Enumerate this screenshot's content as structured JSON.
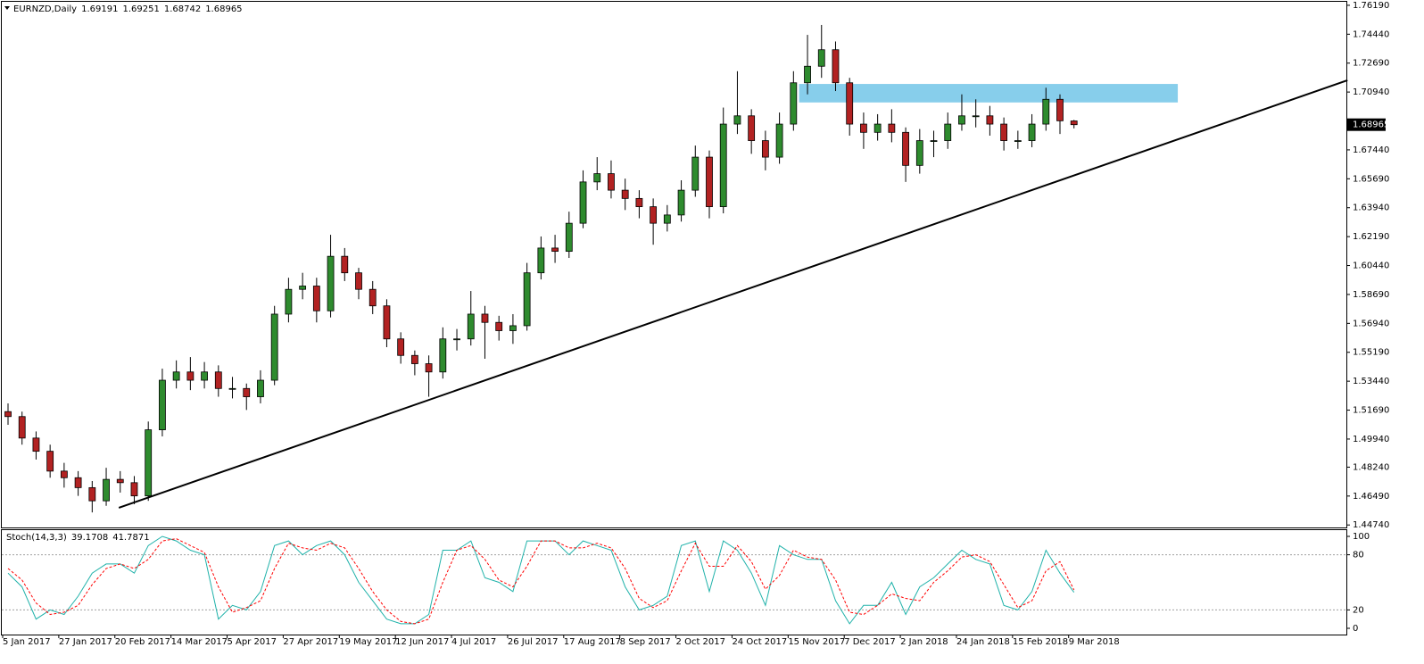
{
  "chart_data": [
    {
      "type": "candlestick",
      "title": "EURNZD,Daily",
      "categories": [
        "5 Jan 2017",
        null,
        null,
        null,
        "27 Jan 2017",
        null,
        null,
        null,
        "20 Feb 2017",
        null,
        null,
        null,
        "14 Mar 2017",
        null,
        null,
        null,
        "5 Apr 2017",
        null,
        null,
        null,
        "27 Apr 2017",
        null,
        null,
        null,
        "19 May 2017",
        null,
        null,
        null,
        "12 Jun 2017",
        null,
        null,
        null,
        "4 Jul 2017",
        null,
        null,
        null,
        "26 Jul 2017",
        null,
        null,
        null,
        "17 Aug 2017",
        null,
        null,
        null,
        "8 Sep 2017",
        null,
        null,
        null,
        "2 Oct 2017",
        null,
        null,
        null,
        "24 Oct 2017",
        null,
        null,
        null,
        "15 Nov 2017",
        null,
        null,
        null,
        "7 Dec 2017",
        null,
        null,
        null,
        "2 Jan 2018",
        null,
        null,
        null,
        "24 Jan 2018",
        null,
        null,
        null,
        "15 Feb 2018",
        null,
        null,
        null,
        "9 Mar 2018"
      ],
      "open": [
        1.516,
        1.513,
        1.5,
        1.492,
        1.48,
        1.476,
        1.47,
        1.462,
        1.475,
        1.473,
        1.465,
        1.505,
        1.535,
        1.54,
        1.535,
        1.54,
        1.53,
        1.53,
        1.525,
        1.535,
        1.575,
        1.59,
        1.592,
        1.577,
        1.61,
        1.6,
        1.59,
        1.58,
        1.56,
        1.55,
        1.545,
        1.54,
        1.56,
        1.56,
        1.575,
        1.57,
        1.565,
        1.568,
        1.6,
        1.615,
        1.613,
        1.63,
        1.655,
        1.66,
        1.65,
        1.645,
        1.64,
        1.63,
        1.635,
        1.65,
        1.67,
        1.64,
        1.69,
        1.695,
        1.68,
        1.67,
        1.69,
        1.715,
        1.725,
        1.735,
        1.715,
        1.69,
        1.685,
        1.69,
        1.685,
        1.665,
        1.68,
        1.68,
        1.69,
        1.695,
        1.695,
        1.69,
        1.68,
        1.68,
        1.69,
        1.705,
        1.69191
      ],
      "high": [
        1.521,
        1.516,
        1.504,
        1.496,
        1.485,
        1.48,
        1.474,
        1.482,
        1.48,
        1.477,
        1.51,
        1.542,
        1.547,
        1.549,
        1.546,
        1.544,
        1.537,
        1.533,
        1.541,
        1.58,
        1.597,
        1.6,
        1.597,
        1.623,
        1.615,
        1.603,
        1.595,
        1.584,
        1.564,
        1.553,
        1.55,
        1.567,
        1.566,
        1.589,
        1.58,
        1.574,
        1.575,
        1.606,
        1.622,
        1.623,
        1.637,
        1.662,
        1.67,
        1.668,
        1.657,
        1.65,
        1.645,
        1.641,
        1.656,
        1.677,
        1.674,
        1.7,
        1.722,
        1.699,
        1.686,
        1.697,
        1.722,
        1.744,
        1.75,
        1.74,
        1.718,
        1.697,
        1.696,
        1.699,
        1.688,
        1.687,
        1.686,
        1.697,
        1.708,
        1.705,
        1.701,
        1.694,
        1.686,
        1.696,
        1.712,
        1.708,
        1.69251
      ],
      "low": [
        1.508,
        1.496,
        1.487,
        1.476,
        1.47,
        1.465,
        1.455,
        1.459,
        1.467,
        1.46,
        1.462,
        1.501,
        1.53,
        1.529,
        1.53,
        1.525,
        1.524,
        1.517,
        1.521,
        1.532,
        1.57,
        1.584,
        1.57,
        1.573,
        1.595,
        1.584,
        1.575,
        1.555,
        1.545,
        1.538,
        1.525,
        1.536,
        1.553,
        1.556,
        1.548,
        1.559,
        1.557,
        1.565,
        1.596,
        1.606,
        1.609,
        1.627,
        1.65,
        1.645,
        1.638,
        1.633,
        1.617,
        1.625,
        1.631,
        1.646,
        1.633,
        1.636,
        1.684,
        1.672,
        1.662,
        1.666,
        1.686,
        1.708,
        1.718,
        1.71,
        1.683,
        1.675,
        1.68,
        1.679,
        1.655,
        1.66,
        1.67,
        1.675,
        1.686,
        1.688,
        1.683,
        1.674,
        1.675,
        1.676,
        1.686,
        1.684,
        1.68742
      ],
      "close": [
        1.513,
        1.5,
        1.492,
        1.48,
        1.476,
        1.47,
        1.462,
        1.475,
        1.473,
        1.465,
        1.505,
        1.535,
        1.54,
        1.535,
        1.54,
        1.53,
        1.53,
        1.525,
        1.535,
        1.575,
        1.59,
        1.592,
        1.577,
        1.61,
        1.6,
        1.59,
        1.58,
        1.56,
        1.55,
        1.545,
        1.54,
        1.56,
        1.56,
        1.575,
        1.57,
        1.565,
        1.568,
        1.6,
        1.615,
        1.613,
        1.63,
        1.655,
        1.66,
        1.65,
        1.645,
        1.64,
        1.63,
        1.635,
        1.65,
        1.67,
        1.64,
        1.69,
        1.695,
        1.68,
        1.67,
        1.69,
        1.715,
        1.725,
        1.735,
        1.715,
        1.69,
        1.685,
        1.69,
        1.685,
        1.665,
        1.68,
        1.68,
        1.69,
        1.695,
        1.695,
        1.69,
        1.68,
        1.68,
        1.69,
        1.705,
        1.692,
        1.68965
      ],
      "up_color": "#2e8b2e",
      "down_color": "#b22222",
      "ylim": [
        1.4459,
        1.7651
      ],
      "yticks": [
        {
          "value": 1.7619,
          "label": "1.76190"
        },
        {
          "value": 1.7444,
          "label": "1.74440"
        },
        {
          "value": 1.7269,
          "label": "1.72690"
        },
        {
          "value": 1.7094,
          "label": "1.70940"
        },
        {
          "value": 1.6744,
          "label": "1.67440"
        },
        {
          "value": 1.6569,
          "label": "1.65690"
        },
        {
          "value": 1.6394,
          "label": "1.63940"
        },
        {
          "value": 1.6219,
          "label": "1.62190"
        },
        {
          "value": 1.6044,
          "label": "1.60440"
        },
        {
          "value": 1.5869,
          "label": "1.58690"
        },
        {
          "value": 1.5694,
          "label": "1.56940"
        },
        {
          "value": 1.5519,
          "label": "1.55190"
        },
        {
          "value": 1.5344,
          "label": "1.53440"
        },
        {
          "value": 1.5169,
          "label": "1.51690"
        },
        {
          "value": 1.4994,
          "label": "1.49940"
        },
        {
          "value": 1.4824,
          "label": "1.48240"
        },
        {
          "value": 1.4649,
          "label": "1.46490"
        },
        {
          "value": 1.4474,
          "label": "1.44740"
        }
      ],
      "trendline": {
        "x": [
          7.9,
          95.5
        ],
        "y": [
          1.4578,
          1.7165
        ],
        "color": "#000000"
      },
      "zone": {
        "x": [
          56.4,
          83.4
        ],
        "y": [
          1.7031,
          1.7143
        ],
        "color": "#87ceeb"
      }
    },
    {
      "type": "line",
      "title": "Stoch(14,3,3)",
      "series": [
        {
          "name": "Main",
          "color": "#20b2aa",
          "dashed": false,
          "values": [
            60,
            45,
            10,
            20,
            15,
            35,
            60,
            70,
            70,
            60,
            90,
            100,
            95,
            85,
            80,
            10,
            25,
            20,
            40,
            90,
            95,
            80,
            90,
            95,
            80,
            50,
            30,
            10,
            5,
            5,
            15,
            85,
            85,
            95,
            55,
            50,
            40,
            95,
            95,
            95,
            80,
            95,
            90,
            85,
            45,
            20,
            25,
            35,
            90,
            95,
            40,
            95,
            85,
            60,
            25,
            90,
            80,
            75,
            75,
            30,
            5,
            25,
            25,
            50,
            15,
            45,
            55,
            70,
            85,
            75,
            70,
            25,
            20,
            40,
            85,
            60,
            39.1708
          ]
        },
        {
          "name": "Signal",
          "color": "#ff0000",
          "dashed": true,
          "values": [
            65,
            52.5,
            27.5,
            15,
            17.5,
            25,
            47.5,
            65,
            70,
            65,
            75,
            95,
            97.5,
            90,
            82.5,
            45,
            17.5,
            22.5,
            30,
            65,
            92.5,
            87.5,
            85,
            92.5,
            87.5,
            65,
            40,
            20,
            7.5,
            5,
            10,
            50,
            85,
            90,
            75,
            52.5,
            45,
            67.5,
            95,
            95,
            87.5,
            87.5,
            92.5,
            87.5,
            65,
            32.5,
            22.5,
            30,
            62.5,
            92.5,
            67.5,
            67.5,
            90,
            72.5,
            42.5,
            57.5,
            85,
            77.5,
            75,
            52.5,
            17.5,
            15,
            25,
            37.5,
            32.5,
            30,
            50,
            62.5,
            77.5,
            80,
            72.5,
            47.5,
            22.5,
            30,
            62.5,
            72.5,
            41.7871
          ]
        }
      ],
      "ylim": [
        0,
        100
      ],
      "yticks": [
        0,
        20,
        80,
        100
      ]
    }
  ]
}
